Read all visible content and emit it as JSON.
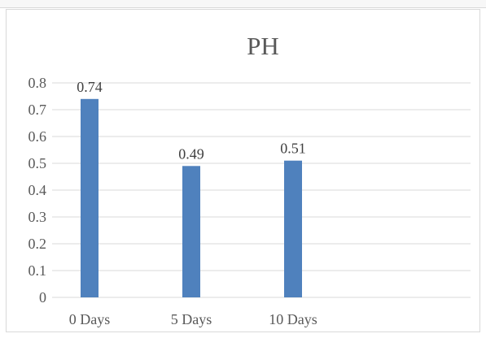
{
  "chart_data": {
    "type": "bar",
    "title": "PH",
    "categories": [
      "0 Days",
      "5 Days",
      "10 Days"
    ],
    "values": [
      0.74,
      0.49,
      0.51
    ],
    "data_labels": [
      "0.74",
      "0.49",
      "0.51"
    ],
    "ylim": [
      0,
      0.8
    ],
    "yticks": [
      "0",
      "0.1",
      "0.2",
      "0.3",
      "0.4",
      "0.5",
      "0.6",
      "0.7",
      "0.8"
    ],
    "xlabel": "",
    "ylabel": "",
    "grid": true,
    "legend": "none",
    "bar_color": "#4f81bd"
  }
}
